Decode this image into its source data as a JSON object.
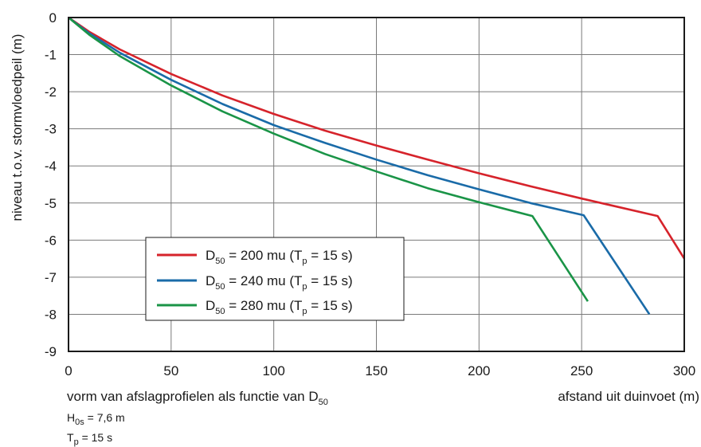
{
  "chart_data": {
    "type": "line",
    "xlabel": "afstand uit duinvoet (m)",
    "ylabel": "niveau t.o.v. stormvloedpeil (m)",
    "xlim": [
      0,
      300
    ],
    "ylim": [
      -9,
      0
    ],
    "x_ticks": [
      "0",
      "50",
      "100",
      "150",
      "200",
      "250",
      "300"
    ],
    "y_ticks": [
      "0",
      "-1",
      "-2",
      "-3",
      "-4",
      "-5",
      "-6",
      "-7",
      "-8",
      "-9"
    ],
    "grid": true,
    "legend_position": "lower-left",
    "series": [
      {
        "name": "D50 = 200 mu (Tp = 15 s)",
        "legend": {
          "pre": "D",
          "sub": "50",
          "mid": " = 200 mu (T",
          "sub2": "p",
          "post": " = 15 s)"
        },
        "color": "#d6232b",
        "points": [
          [
            0,
            0
          ],
          [
            10,
            -0.38
          ],
          [
            25,
            -0.86
          ],
          [
            50,
            -1.52
          ],
          [
            75,
            -2.1
          ],
          [
            100,
            -2.6
          ],
          [
            125,
            -3.05
          ],
          [
            150,
            -3.45
          ],
          [
            175,
            -3.83
          ],
          [
            200,
            -4.2
          ],
          [
            225,
            -4.55
          ],
          [
            250,
            -4.88
          ],
          [
            287,
            -5.35
          ],
          [
            300,
            -6.5
          ]
        ]
      },
      {
        "name": "D50 = 240 mu (Tp = 15 s)",
        "legend": {
          "pre": "D",
          "sub": "50",
          "mid": " = 240 mu (T",
          "sub2": "p",
          "post": " = 15 s)"
        },
        "color": "#1a6ba8",
        "points": [
          [
            0,
            0
          ],
          [
            10,
            -0.42
          ],
          [
            25,
            -0.95
          ],
          [
            50,
            -1.68
          ],
          [
            75,
            -2.33
          ],
          [
            100,
            -2.9
          ],
          [
            125,
            -3.38
          ],
          [
            150,
            -3.83
          ],
          [
            175,
            -4.25
          ],
          [
            200,
            -4.63
          ],
          [
            225,
            -5.0
          ],
          [
            251,
            -5.33
          ],
          [
            283,
            -8.0
          ]
        ]
      },
      {
        "name": "D50 = 280 mu (Tp = 15 s)",
        "legend": {
          "pre": "D",
          "sub": "50",
          "mid": " = 280 mu (T",
          "sub2": "p",
          "post": " = 15 s)"
        },
        "color": "#1a9447",
        "points": [
          [
            0,
            0
          ],
          [
            10,
            -0.46
          ],
          [
            25,
            -1.04
          ],
          [
            50,
            -1.83
          ],
          [
            75,
            -2.53
          ],
          [
            100,
            -3.13
          ],
          [
            125,
            -3.68
          ],
          [
            150,
            -4.15
          ],
          [
            175,
            -4.6
          ],
          [
            200,
            -4.98
          ],
          [
            226,
            -5.35
          ],
          [
            253,
            -7.65
          ]
        ]
      }
    ],
    "caption": {
      "pre": "vorm van afslagprofielen als functie van D",
      "sub": "50"
    },
    "notes": [
      {
        "pre": "H",
        "sub": "0s",
        "post": " = 7,6 m"
      },
      {
        "pre": "T",
        "sub": "p",
        "post": " = 15 s"
      }
    ]
  }
}
